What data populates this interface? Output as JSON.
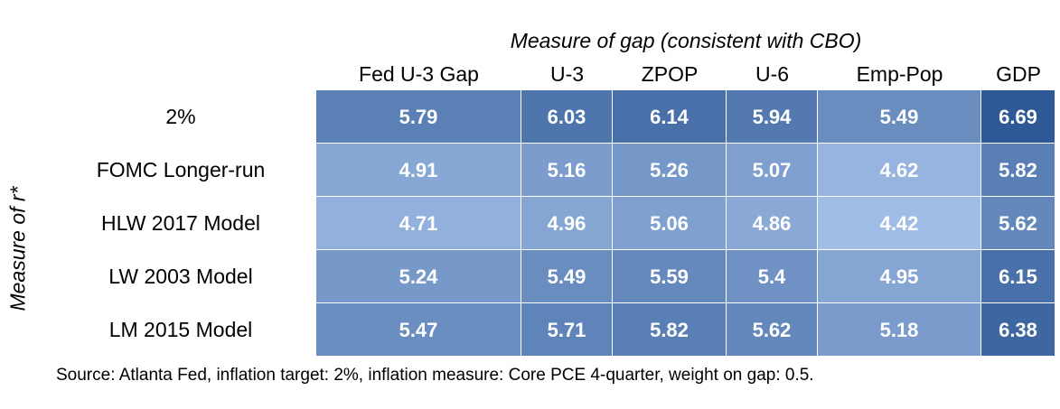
{
  "chart_data": {
    "type": "table",
    "row_group_label": "Measure of r*",
    "column_group_label": "Measure of gap (consistent with CBO)",
    "columns": [
      "Fed U-3 Gap",
      "U-3",
      "ZPOP",
      "U-6",
      "Emp-Pop",
      "GDP"
    ],
    "rows": [
      {
        "label": "2%",
        "values": [
          "5.79",
          "6.03",
          "6.14",
          "5.94",
          "5.49",
          "6.69"
        ]
      },
      {
        "label": "FOMC Longer-run",
        "values": [
          "4.91",
          "5.16",
          "5.26",
          "5.07",
          "4.62",
          "5.82"
        ]
      },
      {
        "label": "HLW 2017 Model",
        "values": [
          "4.71",
          "4.96",
          "5.06",
          "4.86",
          "4.42",
          "5.62"
        ]
      },
      {
        "label": "LW 2003 Model",
        "values": [
          "5.24",
          "5.49",
          "5.59",
          "5.4",
          "4.95",
          "6.15"
        ]
      },
      {
        "label": "LM 2015 Model",
        "values": [
          "5.47",
          "5.71",
          "5.82",
          "5.62",
          "5.18",
          "6.38"
        ]
      }
    ],
    "color_scale": {
      "low": "#a0bde6",
      "high": "#2e5896"
    }
  },
  "source_note": "Source: Atlanta Fed, inflation target: 2%, inflation measure: Core PCE 4-quarter, weight on gap: 0.5."
}
